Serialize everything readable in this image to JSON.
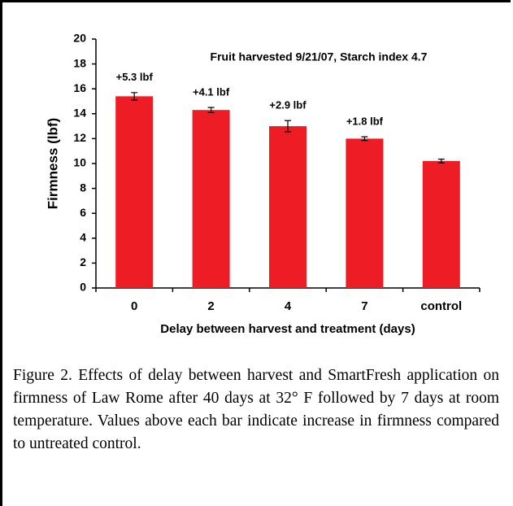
{
  "chart_data": {
    "type": "bar",
    "title": "Fruit harvested 9/21/07, Starch index 4.7",
    "y_label": "Firmness (lbf)",
    "x_label": "Delay between harvest and treatment (days)",
    "categories": [
      "0",
      "2",
      "4",
      "7",
      "control"
    ],
    "values": [
      15.4,
      14.3,
      13.0,
      12.0,
      10.2
    ],
    "errors": [
      0.3,
      0.2,
      0.45,
      0.15,
      0.15
    ],
    "annotations": [
      "+5.3 lbf",
      "+4.1 lbf",
      "+2.9 lbf",
      "+1.8 lbf"
    ],
    "color": "#ee1c24",
    "ylim": [
      0,
      20
    ],
    "yticks": [
      0,
      2,
      4,
      6,
      8,
      10,
      12,
      14,
      16,
      18,
      20
    ]
  },
  "caption": "Figure 2.   Effects of delay between harvest and SmartFresh application on firmness of Law Rome after 40 days at 32° F followed by 7 days at room temperature.  Values above each bar indicate increase in firmness compared to untreated control."
}
